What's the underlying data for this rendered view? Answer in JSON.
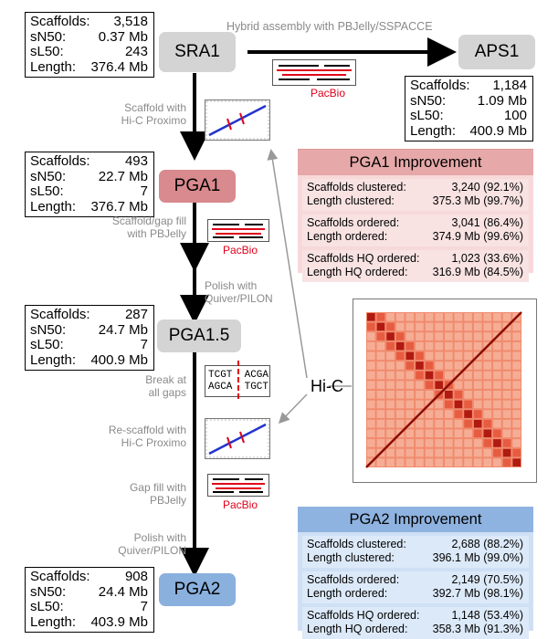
{
  "top_edge": {
    "label": "Hybrid assembly with PBJelly/SSPACCE"
  },
  "nodes": {
    "sra1": "SRA1",
    "aps1": "APS1",
    "pga1": "PGA1",
    "pga15": "PGA1.5",
    "pga2": "PGA2"
  },
  "stats": {
    "sra1": [
      {
        "k": "Scaffolds:",
        "v": "3,518"
      },
      {
        "k": "sN50:",
        "v": "0.37 Mb"
      },
      {
        "k": "sL50:",
        "v": "243"
      },
      {
        "k": "Length:",
        "v": "376.4 Mb"
      }
    ],
    "aps1": [
      {
        "k": "Scaffolds:",
        "v": "1,184"
      },
      {
        "k": "sN50:",
        "v": "1.09 Mb"
      },
      {
        "k": "sL50:",
        "v": "100"
      },
      {
        "k": "Length:",
        "v": "400.9 Mb"
      }
    ],
    "pga1": [
      {
        "k": "Scaffolds:",
        "v": "493"
      },
      {
        "k": "sN50:",
        "v": "22.7 Mb"
      },
      {
        "k": "sL50:",
        "v": "7"
      },
      {
        "k": "Length:",
        "v": "376.7 Mb"
      }
    ],
    "pga15": [
      {
        "k": "Scaffolds:",
        "v": "287"
      },
      {
        "k": "sN50:",
        "v": "24.7 Mb"
      },
      {
        "k": "sL50:",
        "v": "7"
      },
      {
        "k": "Length:",
        "v": "400.9 Mb"
      }
    ],
    "pga2": [
      {
        "k": "Scaffolds:",
        "v": "908"
      },
      {
        "k": "sN50:",
        "v": "24.4 Mb"
      },
      {
        "k": "sL50:",
        "v": "7"
      },
      {
        "k": "Length:",
        "v": "403.9 Mb"
      }
    ]
  },
  "steps": {
    "s1": [
      "Scaffold with",
      "Hi-C Proximo"
    ],
    "s2": [
      "Scaffold/gap fill",
      "with PBJelly"
    ],
    "s3": [
      "Polish with",
      "Quiver/PILON"
    ],
    "s4": [
      "Break at",
      "all gaps"
    ],
    "s5": [
      "Re-scaffold with",
      "Hi-C Proximo"
    ],
    "s6": [
      "Gap fill with",
      "PBJelly"
    ],
    "s7": [
      "Polish with",
      "Quiver/PILON"
    ]
  },
  "pacbio": "PacBio",
  "dna": {
    "top": "TCGT",
    "top2": "ACGA",
    "bot": "AGCA",
    "bot2": "TGCT"
  },
  "hic_label": "Hi-C",
  "improvement1": {
    "title": "PGA1 Improvement",
    "groups": [
      [
        {
          "k": "Scaffolds clustered:",
          "v": "3,240 (92.1%)"
        },
        {
          "k": "Length clustered:",
          "v": "375.3 Mb (99.7%)"
        }
      ],
      [
        {
          "k": "Scaffolds ordered:",
          "v": "3,041 (86.4%)"
        },
        {
          "k": "Length ordered:",
          "v": "374.9 Mb (99.6%)"
        }
      ],
      [
        {
          "k": "Scaffolds HQ ordered:",
          "v": "1,023 (33.6%)"
        },
        {
          "k": "Length HQ ordered:",
          "v": "316.9 Mb (84.5%)"
        }
      ]
    ]
  },
  "improvement2": {
    "title": "PGA2 Improvement",
    "groups": [
      [
        {
          "k": "Scaffolds clustered:",
          "v": "2,688 (88.2%)"
        },
        {
          "k": "Length clustered:",
          "v": "396.1 Mb (99.0%)"
        }
      ],
      [
        {
          "k": "Scaffolds ordered:",
          "v": "2,149 (70.5%)"
        },
        {
          "k": "Length ordered:",
          "v": "392.7 Mb (98.1%)"
        }
      ],
      [
        {
          "k": "Scaffolds HQ ordered:",
          "v": "1,148 (53.4%)"
        },
        {
          "k": "Length HQ ordered:",
          "v": "358.3 Mb (91.3%)"
        }
      ]
    ]
  },
  "colors": {
    "pacbio": "#e0001a",
    "pga1_fill": "#d98a8e",
    "pga2_fill": "#8ab0de",
    "hic_red": "#e8503a"
  }
}
